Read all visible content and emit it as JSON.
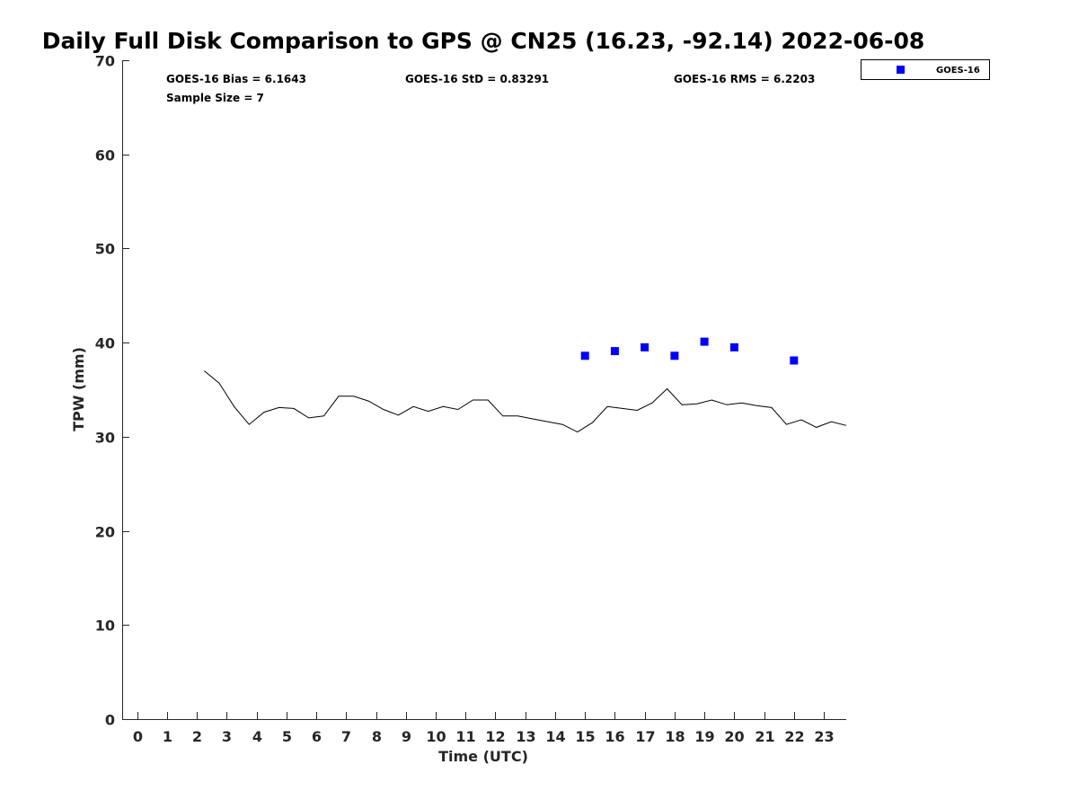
{
  "chart_data": {
    "type": "scatter",
    "title": "Daily Full Disk Comparison to GPS @ CN25 (16.23, -92.14) 2022-06-08",
    "xlabel": "Time (UTC)",
    "ylabel": "TPW (mm)",
    "xlim": [
      -0.5,
      23.75
    ],
    "ylim": [
      0,
      70
    ],
    "x_ticks": [
      0,
      1,
      2,
      3,
      4,
      5,
      6,
      7,
      8,
      9,
      10,
      11,
      12,
      13,
      14,
      15,
      16,
      17,
      18,
      19,
      20,
      21,
      22,
      23
    ],
    "y_ticks": [
      0,
      10,
      20,
      30,
      40,
      50,
      60,
      70
    ],
    "grid": false,
    "legend_position": "outside top-right",
    "stats": {
      "bias": "GOES-16 Bias = 6.1643",
      "std": "GOES-16 StD = 0.83291",
      "rms": "GOES-16 RMS = 6.2203",
      "sample_size": "Sample Size = 7"
    },
    "series": [
      {
        "name": "GOES-16",
        "kind": "scatter",
        "marker": "square",
        "color": "#0000ff",
        "x": [
          15,
          16,
          17,
          18,
          19,
          20,
          22
        ],
        "y": [
          38.6,
          39.1,
          39.5,
          38.6,
          40.1,
          39.5,
          38.1
        ]
      },
      {
        "kind": "line",
        "color": "#000000",
        "x": [
          2.25,
          2.75,
          3.25,
          3.75,
          4.25,
          4.75,
          5.25,
          5.75,
          6.25,
          6.75,
          7.25,
          7.75,
          8.25,
          8.75,
          9.25,
          9.75,
          10.25,
          10.75,
          11.25,
          11.75,
          12.25,
          12.75,
          13.25,
          13.75,
          14.25,
          14.75,
          15.25,
          15.75,
          16.25,
          16.75,
          17.25,
          17.75,
          18.25,
          18.75,
          19.25,
          19.75,
          20.25,
          20.75,
          21.25,
          21.75,
          22.25,
          22.75,
          23.25,
          23.75
        ],
        "y": [
          37.0,
          35.7,
          33.2,
          31.3,
          32.6,
          33.1,
          33.0,
          32.0,
          32.2,
          34.3,
          34.3,
          33.8,
          32.9,
          32.3,
          33.2,
          32.7,
          33.2,
          32.9,
          33.9,
          33.9,
          32.2,
          32.2,
          31.9,
          31.6,
          31.3,
          30.5,
          31.5,
          33.2,
          33.0,
          32.8,
          33.6,
          35.1,
          33.4,
          33.5,
          33.9,
          33.4,
          33.6,
          33.3,
          33.1,
          31.3,
          31.8,
          31.0,
          31.6,
          31.2
        ]
      }
    ]
  }
}
